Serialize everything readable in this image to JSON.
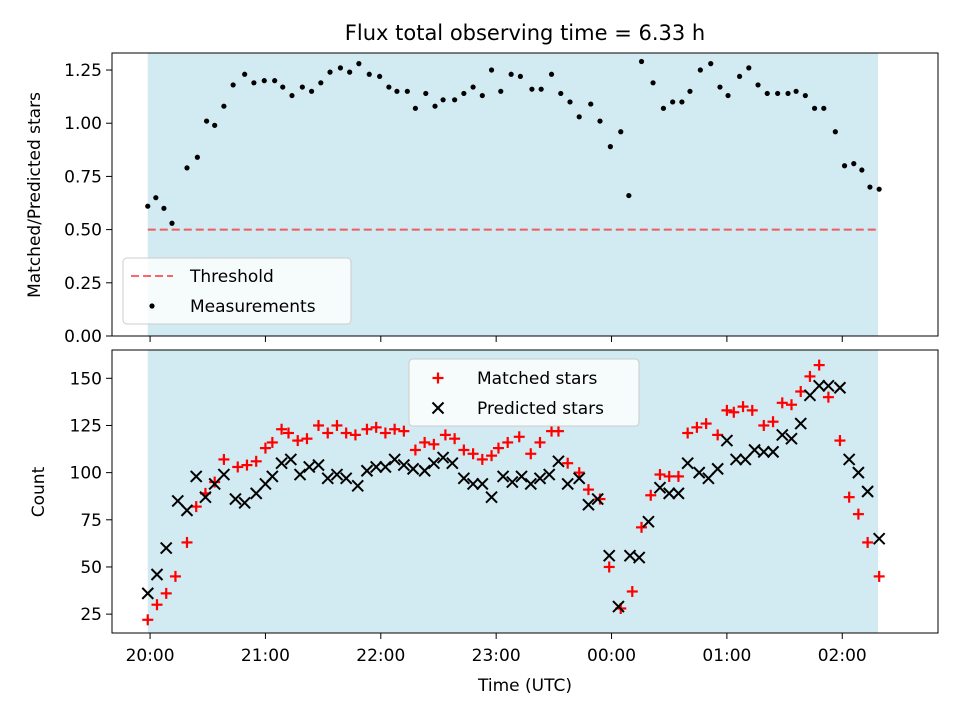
{
  "title": "Flux total observing time = 6.33 h",
  "colors": {
    "shade": "#add8e6",
    "threshold": "#ff0000",
    "measurements": "#000000",
    "matched": "#ff0000",
    "predicted": "#000000"
  },
  "chart_data": [
    {
      "type": "scatter",
      "panel": "top",
      "xlabel": "",
      "ylabel": "Matched/Predicted stars",
      "xlim": [
        -0.33,
        6.83
      ],
      "ylim": [
        0.0,
        1.33
      ],
      "yticks": [
        0.0,
        0.25,
        0.5,
        0.75,
        1.0,
        1.25
      ],
      "ytick_labels": [
        "0.00",
        "0.25",
        "0.50",
        "0.75",
        "1.00",
        "1.25"
      ],
      "xticks": [
        0,
        1,
        2,
        3,
        4,
        5,
        6
      ],
      "shaded_span": [
        -0.02,
        6.31
      ],
      "legend_position": "lower-left",
      "threshold": {
        "name": "Threshold",
        "value": 0.5,
        "x_range": [
          -0.02,
          6.31
        ],
        "style": "dashed"
      },
      "series": [
        {
          "name": "Measurements",
          "marker": "dot",
          "x": [
            -0.02,
            0.05,
            0.12,
            0.19,
            0.32,
            0.41,
            0.49,
            0.56,
            0.64,
            0.72,
            0.82,
            0.9,
            0.99,
            1.08,
            1.15,
            1.23,
            1.32,
            1.4,
            1.48,
            1.56,
            1.65,
            1.73,
            1.81,
            1.9,
            1.99,
            2.07,
            2.14,
            2.23,
            2.3,
            2.39,
            2.47,
            2.54,
            2.64,
            2.72,
            2.8,
            2.88,
            2.96,
            3.04,
            3.13,
            3.21,
            3.31,
            3.39,
            3.48,
            3.56,
            3.64,
            3.72,
            3.82,
            3.9,
            3.99,
            4.08,
            4.15,
            4.26,
            4.36,
            4.45,
            4.53,
            4.61,
            4.68,
            4.77,
            4.86,
            4.94,
            5.01,
            5.11,
            5.19,
            5.27,
            5.35,
            5.44,
            5.53,
            5.6,
            5.68,
            5.76,
            5.84,
            5.94,
            6.02,
            6.1,
            6.17,
            6.24,
            6.32
          ],
          "y": [
            0.61,
            0.65,
            0.6,
            0.53,
            0.79,
            0.84,
            1.01,
            0.99,
            1.08,
            1.18,
            1.23,
            1.19,
            1.2,
            1.2,
            1.17,
            1.13,
            1.17,
            1.15,
            1.19,
            1.24,
            1.26,
            1.24,
            1.28,
            1.23,
            1.22,
            1.17,
            1.15,
            1.15,
            1.07,
            1.14,
            1.08,
            1.11,
            1.11,
            1.14,
            1.17,
            1.13,
            1.25,
            1.15,
            1.23,
            1.22,
            1.16,
            1.16,
            1.23,
            1.14,
            1.1,
            1.03,
            1.09,
            1.01,
            0.89,
            0.96,
            0.66,
            1.29,
            1.19,
            1.07,
            1.1,
            1.1,
            1.15,
            1.25,
            1.28,
            1.17,
            1.13,
            1.22,
            1.26,
            1.18,
            1.14,
            1.14,
            1.14,
            1.15,
            1.13,
            1.07,
            1.07,
            0.96,
            0.8,
            0.81,
            0.78,
            0.7,
            0.69
          ]
        }
      ]
    },
    {
      "type": "scatter",
      "panel": "bottom",
      "xlabel": "Time (UTC)",
      "ylabel": "Count",
      "xlim": [
        -0.33,
        6.83
      ],
      "ylim": [
        15,
        165
      ],
      "yticks": [
        25,
        50,
        75,
        100,
        125,
        150
      ],
      "xticks": [
        0,
        1,
        2,
        3,
        4,
        5,
        6
      ],
      "xtick_labels": [
        "20:00",
        "21:00",
        "22:00",
        "23:00",
        "00:00",
        "01:00",
        "02:00"
      ],
      "shaded_span": [
        -0.02,
        6.31
      ],
      "legend_position": "upper-center",
      "series": [
        {
          "name": "Matched stars",
          "marker": "plus",
          "x": [
            -0.02,
            0.06,
            0.14,
            0.22,
            0.32,
            0.4,
            0.48,
            0.56,
            0.64,
            0.76,
            0.84,
            0.92,
            1.0,
            1.06,
            1.14,
            1.2,
            1.28,
            1.36,
            1.46,
            1.54,
            1.62,
            1.7,
            1.78,
            1.88,
            1.96,
            2.04,
            2.12,
            2.2,
            2.3,
            2.38,
            2.46,
            2.56,
            2.64,
            2.72,
            2.8,
            2.88,
            2.96,
            3.02,
            3.1,
            3.2,
            3.3,
            3.38,
            3.48,
            3.54,
            3.62,
            3.72,
            3.8,
            3.9,
            3.98,
            4.08,
            4.18,
            4.26,
            4.34,
            4.42,
            4.5,
            4.58,
            4.66,
            4.74,
            4.82,
            4.92,
            5.0,
            5.06,
            5.14,
            5.22,
            5.32,
            5.4,
            5.48,
            5.56,
            5.64,
            5.72,
            5.8,
            5.88,
            5.98,
            6.06,
            6.14,
            6.22,
            6.32
          ],
          "y": [
            22,
            30,
            36,
            45,
            63,
            82,
            89,
            95,
            107,
            103,
            104,
            106,
            113,
            116,
            123,
            121,
            117,
            118,
            125,
            121,
            125,
            121,
            120,
            123,
            124,
            121,
            123,
            122,
            112,
            116,
            115,
            120,
            118,
            112,
            110,
            107,
            109,
            113,
            116,
            119,
            110,
            116,
            122,
            122,
            105,
            100,
            91,
            86,
            50,
            28,
            37,
            71,
            88,
            99,
            98,
            98,
            121,
            124,
            126,
            120,
            133,
            132,
            135,
            133,
            125,
            127,
            137,
            136,
            143,
            151,
            157,
            140,
            117,
            87,
            78,
            63,
            45
          ]
        },
        {
          "name": "Predicted stars",
          "marker": "x",
          "x": [
            -0.02,
            0.06,
            0.14,
            0.24,
            0.32,
            0.4,
            0.48,
            0.56,
            0.64,
            0.74,
            0.82,
            0.92,
            1.0,
            1.06,
            1.14,
            1.22,
            1.3,
            1.38,
            1.46,
            1.54,
            1.62,
            1.7,
            1.8,
            1.88,
            1.96,
            2.04,
            2.12,
            2.2,
            2.28,
            2.38,
            2.46,
            2.54,
            2.62,
            2.72,
            2.8,
            2.88,
            2.96,
            3.06,
            3.14,
            3.22,
            3.3,
            3.38,
            3.46,
            3.54,
            3.62,
            3.72,
            3.8,
            3.88,
            3.98,
            4.06,
            4.16,
            4.24,
            4.32,
            4.42,
            4.5,
            4.58,
            4.66,
            4.76,
            4.84,
            4.92,
            5.0,
            5.08,
            5.16,
            5.24,
            5.32,
            5.4,
            5.48,
            5.56,
            5.64,
            5.72,
            5.8,
            5.88,
            5.98,
            6.06,
            6.14,
            6.22,
            6.32
          ],
          "y": [
            36,
            46,
            60,
            85,
            80,
            98,
            87,
            94,
            99,
            86,
            84,
            89,
            94,
            98,
            105,
            107,
            99,
            103,
            104,
            97,
            99,
            97,
            93,
            101,
            103,
            103,
            107,
            104,
            102,
            101,
            105,
            108,
            105,
            97,
            94,
            94,
            87,
            98,
            95,
            98,
            94,
            97,
            99,
            106,
            94,
            97,
            83,
            86,
            56,
            29,
            56,
            55,
            74,
            92,
            89,
            89,
            105,
            100,
            97,
            102,
            117,
            107,
            107,
            112,
            111,
            111,
            120,
            118,
            126,
            141,
            146,
            146,
            145,
            107,
            100,
            90,
            65
          ]
        }
      ]
    }
  ]
}
